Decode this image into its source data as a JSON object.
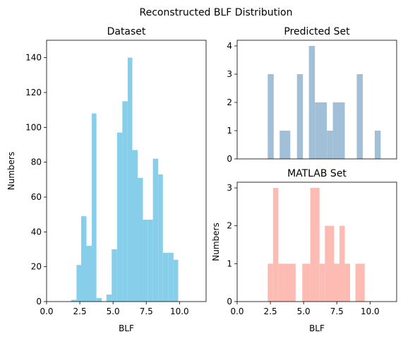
{
  "figure": {
    "suptitle": "Reconstructed BLF Distribution"
  },
  "chart_data": [
    {
      "type": "bar",
      "title": "Dataset",
      "xlabel": "BLF",
      "ylabel": "Numbers",
      "xlim": [
        0,
        12
      ],
      "ylim": [
        0,
        150
      ],
      "xticks": [
        0.0,
        2.5,
        5.0,
        7.5,
        10.0
      ],
      "xtick_labels": [
        "0.0",
        "2.5",
        "5.0",
        "7.5",
        "10.0"
      ],
      "yticks": [
        0,
        20,
        40,
        60,
        80,
        100,
        120,
        140
      ],
      "ytick_labels": [
        "0",
        "20",
        "40",
        "60",
        "80",
        "100",
        "120",
        "140"
      ],
      "color": "#87ceeb",
      "bins": [
        {
          "x0": 1.85,
          "x1": 2.25,
          "value": 1
        },
        {
          "x0": 2.25,
          "x1": 2.6,
          "value": 21
        },
        {
          "x0": 2.6,
          "x1": 3.0,
          "value": 49
        },
        {
          "x0": 3.0,
          "x1": 3.4,
          "value": 32
        },
        {
          "x0": 3.4,
          "x1": 3.75,
          "value": 108
        },
        {
          "x0": 3.75,
          "x1": 4.15,
          "value": 2
        },
        {
          "x0": 4.5,
          "x1": 4.9,
          "value": 4
        },
        {
          "x0": 4.9,
          "x1": 5.3,
          "value": 30
        },
        {
          "x0": 5.3,
          "x1": 5.7,
          "value": 97
        },
        {
          "x0": 5.7,
          "x1": 6.1,
          "value": 115
        },
        {
          "x0": 6.1,
          "x1": 6.45,
          "value": 140
        },
        {
          "x0": 6.45,
          "x1": 6.85,
          "value": 87
        },
        {
          "x0": 6.85,
          "x1": 7.25,
          "value": 71
        },
        {
          "x0": 7.25,
          "x1": 7.6,
          "value": 47
        },
        {
          "x0": 7.6,
          "x1": 8.0,
          "value": 47
        },
        {
          "x0": 8.0,
          "x1": 8.4,
          "value": 82
        },
        {
          "x0": 8.4,
          "x1": 8.75,
          "value": 73
        },
        {
          "x0": 8.75,
          "x1": 9.15,
          "value": 28
        },
        {
          "x0": 9.15,
          "x1": 9.55,
          "value": 28
        },
        {
          "x0": 9.55,
          "x1": 9.9,
          "value": 24
        }
      ]
    },
    {
      "type": "bar",
      "title": "Predicted Set",
      "xlabel": "",
      "ylabel": "",
      "xlim": [
        0,
        12
      ],
      "ylim": [
        0,
        4.2
      ],
      "xticks": [],
      "xtick_labels": [],
      "yticks": [
        0,
        1,
        2,
        3,
        4
      ],
      "ytick_labels": [
        "0",
        "1",
        "2",
        "3",
        "4"
      ],
      "color": "#a2bfd8",
      "bins": [
        {
          "x0": 2.3,
          "x1": 2.75,
          "value": 3
        },
        {
          "x0": 3.2,
          "x1": 4.0,
          "value": 1
        },
        {
          "x0": 4.5,
          "x1": 4.95,
          "value": 3
        },
        {
          "x0": 5.4,
          "x1": 5.85,
          "value": 4
        },
        {
          "x0": 5.85,
          "x1": 6.75,
          "value": 2
        },
        {
          "x0": 6.75,
          "x1": 7.2,
          "value": 1
        },
        {
          "x0": 7.2,
          "x1": 8.1,
          "value": 2
        },
        {
          "x0": 9.0,
          "x1": 9.45,
          "value": 3
        },
        {
          "x0": 10.35,
          "x1": 10.8,
          "value": 1
        }
      ]
    },
    {
      "type": "bar",
      "title": "MATLAB Set",
      "xlabel": "BLF",
      "ylabel": "Numbers",
      "xlim": [
        0,
        12
      ],
      "ylim": [
        0,
        3.15
      ],
      "xticks": [
        0.0,
        2.5,
        5.0,
        7.5,
        10.0
      ],
      "xtick_labels": [
        "0.0",
        "2.5",
        "5.0",
        "7.5",
        "10.0"
      ],
      "yticks": [
        0,
        1,
        2,
        3
      ],
      "ytick_labels": [
        "0",
        "1",
        "2",
        "3"
      ],
      "color": "#fcbcb4",
      "bins": [
        {
          "x0": 2.3,
          "x1": 2.7,
          "value": 1
        },
        {
          "x0": 2.7,
          "x1": 3.1,
          "value": 3
        },
        {
          "x0": 3.1,
          "x1": 3.5,
          "value": 1
        },
        {
          "x0": 3.5,
          "x1": 4.4,
          "value": 1
        },
        {
          "x0": 4.9,
          "x1": 5.5,
          "value": 1
        },
        {
          "x0": 5.5,
          "x1": 6.2,
          "value": 3
        },
        {
          "x0": 6.2,
          "x1": 6.6,
          "value": 1
        },
        {
          "x0": 6.6,
          "x1": 7.3,
          "value": 2
        },
        {
          "x0": 7.3,
          "x1": 7.7,
          "value": 1
        },
        {
          "x0": 7.7,
          "x1": 8.1,
          "value": 2
        },
        {
          "x0": 8.1,
          "x1": 8.5,
          "value": 1
        },
        {
          "x0": 8.9,
          "x1": 9.6,
          "value": 1
        }
      ]
    }
  ]
}
